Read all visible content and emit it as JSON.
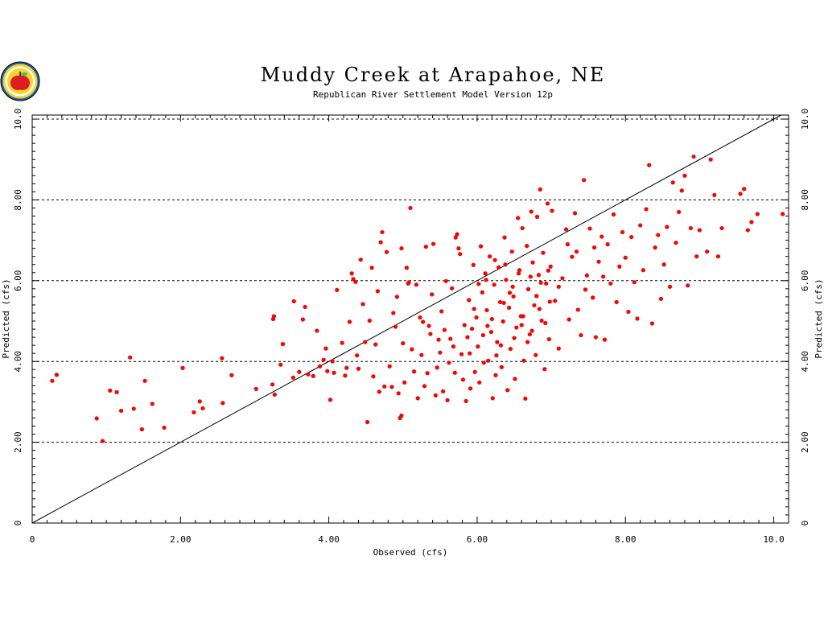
{
  "colors": {
    "points": "#ff0000",
    "grid": "#000000",
    "diagonal": "#000000",
    "background": "#ffffff"
  },
  "logo": {
    "icon": "apple-seal-logo"
  },
  "chart_data": {
    "type": "scatter",
    "title": "Muddy Creek at Arapahoe, NE",
    "subtitle": "Republican River Settlement Model Version 12p",
    "xlabel": "Observed (cfs)",
    "ylabel": "Predicted (cfs)",
    "y2label": "Predicted (cfs)",
    "xlim": [
      0,
      10.2
    ],
    "ylim": [
      0,
      10.1
    ],
    "x_ticks": [
      0,
      2,
      4,
      6,
      8,
      10
    ],
    "x_tick_labels": [
      "0",
      "2.00",
      "4.00",
      "6.00",
      "8.00",
      "10.0"
    ],
    "y_ticks": [
      0,
      2,
      4,
      6,
      8,
      10
    ],
    "y_tick_labels": [
      "0",
      "2.00",
      "4.00",
      "6.00",
      "8.00",
      "10.0"
    ],
    "grid": "horizontal dashed",
    "reference_line": "1:1",
    "series": [
      {
        "points": [
          [
            0.27,
            3.52
          ],
          [
            0.33,
            3.67
          ],
          [
            0.87,
            2.59
          ],
          [
            0.95,
            2.03
          ],
          [
            1.05,
            3.28
          ],
          [
            1.14,
            3.24
          ],
          [
            1.2,
            2.78
          ],
          [
            1.32,
            4.1
          ],
          [
            1.37,
            2.83
          ],
          [
            1.48,
            2.32
          ],
          [
            1.52,
            3.52
          ],
          [
            1.62,
            2.95
          ],
          [
            1.78,
            2.36
          ],
          [
            2.03,
            3.84
          ],
          [
            2.18,
            2.74
          ],
          [
            2.26,
            3.01
          ],
          [
            2.3,
            2.84
          ],
          [
            2.56,
            4.08
          ],
          [
            2.57,
            2.97
          ],
          [
            2.69,
            3.66
          ],
          [
            3.02,
            3.32
          ],
          [
            3.24,
            3.43
          ],
          [
            3.25,
            5.05
          ],
          [
            3.26,
            5.12
          ],
          [
            3.27,
            3.18
          ],
          [
            3.35,
            3.92
          ],
          [
            3.38,
            4.43
          ],
          [
            3.52,
            3.6
          ],
          [
            3.53,
            5.49
          ],
          [
            3.6,
            3.74
          ],
          [
            3.65,
            5.04
          ],
          [
            3.68,
            5.35
          ],
          [
            3.72,
            3.68
          ],
          [
            3.79,
            3.64
          ],
          [
            3.84,
            4.76
          ],
          [
            3.88,
            3.88
          ],
          [
            3.93,
            4.04
          ],
          [
            3.96,
            4.32
          ],
          [
            3.98,
            3.76
          ],
          [
            4.02,
            3.05
          ],
          [
            4.05,
            4.0
          ],
          [
            4.07,
            3.72
          ],
          [
            4.11,
            5.77
          ],
          [
            4.18,
            4.46
          ],
          [
            4.22,
            3.65
          ],
          [
            4.24,
            3.84
          ],
          [
            4.28,
            4.98
          ],
          [
            4.31,
            6.18
          ],
          [
            4.33,
            6.04
          ],
          [
            4.36,
            5.97
          ],
          [
            4.38,
            4.15
          ],
          [
            4.4,
            3.82
          ],
          [
            4.43,
            6.52
          ],
          [
            4.46,
            5.42
          ],
          [
            4.49,
            4.48
          ],
          [
            4.52,
            2.5
          ],
          [
            4.55,
            5.01
          ],
          [
            4.58,
            6.32
          ],
          [
            4.6,
            3.63
          ],
          [
            4.63,
            4.42
          ],
          [
            4.66,
            5.74
          ],
          [
            4.68,
            3.25
          ],
          [
            4.7,
            6.95
          ],
          [
            4.72,
            7.2
          ],
          [
            4.75,
            3.38
          ],
          [
            4.78,
            6.71
          ],
          [
            4.82,
            3.88
          ],
          [
            4.85,
            3.37
          ],
          [
            4.87,
            5.2
          ],
          [
            4.9,
            4.86
          ],
          [
            4.92,
            5.6
          ],
          [
            4.94,
            3.21
          ],
          [
            4.96,
            2.6
          ],
          [
            4.98,
            2.66
          ],
          [
            4.98,
            6.8
          ],
          [
            5.0,
            4.45
          ],
          [
            5.02,
            3.48
          ],
          [
            5.05,
            6.32
          ],
          [
            5.07,
            5.93
          ],
          [
            5.08,
            5.96
          ],
          [
            5.1,
            7.8
          ],
          [
            5.12,
            4.3
          ],
          [
            5.15,
            3.75
          ],
          [
            5.18,
            5.9
          ],
          [
            5.2,
            3.09
          ],
          [
            5.23,
            5.09
          ],
          [
            5.25,
            4.16
          ],
          [
            5.27,
            4.98
          ],
          [
            5.29,
            3.39
          ],
          [
            5.31,
            6.84
          ],
          [
            5.33,
            3.71
          ],
          [
            5.35,
            4.88
          ],
          [
            5.37,
            4.68
          ],
          [
            5.39,
            5.66
          ],
          [
            5.41,
            6.91
          ],
          [
            5.44,
            3.16
          ],
          [
            5.46,
            3.85
          ],
          [
            5.48,
            4.54
          ],
          [
            5.5,
            4.22
          ],
          [
            5.52,
            5.24
          ],
          [
            5.54,
            3.26
          ],
          [
            5.56,
            4.78
          ],
          [
            5.58,
            5.99
          ],
          [
            5.6,
            3.04
          ],
          [
            5.62,
            3.97
          ],
          [
            5.64,
            4.56
          ],
          [
            5.66,
            5.81
          ],
          [
            5.68,
            4.37
          ],
          [
            5.7,
            3.72
          ],
          [
            5.71,
            7.07
          ],
          [
            5.73,
            7.15
          ],
          [
            5.75,
            6.8
          ],
          [
            5.77,
            6.66
          ],
          [
            5.79,
            4.18
          ],
          [
            5.81,
            3.55
          ],
          [
            5.83,
            4.9
          ],
          [
            5.85,
            3.02
          ],
          [
            5.87,
            4.6
          ],
          [
            5.89,
            5.52
          ],
          [
            5.91,
            3.33
          ],
          [
            5.93,
            4.81
          ],
          [
            5.95,
            6.39
          ],
          [
            5.97,
            3.74
          ],
          [
            5.99,
            5.09
          ],
          [
            6.01,
            4.37
          ],
          [
            6.03,
            3.48
          ],
          [
            6.05,
            6.85
          ],
          [
            6.07,
            5.71
          ],
          [
            6.09,
            3.97
          ],
          [
            6.11,
            6.18
          ],
          [
            6.13,
            5.27
          ],
          [
            6.15,
            4.02
          ],
          [
            6.17,
            6.6
          ],
          [
            6.19,
            4.73
          ],
          [
            6.21,
            3.09
          ],
          [
            6.23,
            5.9
          ],
          [
            6.25,
            3.66
          ],
          [
            6.27,
            4.48
          ],
          [
            6.29,
            6.33
          ],
          [
            6.31,
            5.47
          ],
          [
            6.33,
            3.86
          ],
          [
            6.35,
            4.99
          ],
          [
            6.37,
            7.07
          ],
          [
            6.39,
            6.02
          ],
          [
            6.41,
            3.29
          ],
          [
            6.43,
            5.33
          ],
          [
            6.45,
            4.31
          ],
          [
            6.47,
            6.72
          ],
          [
            6.49,
            5.61
          ],
          [
            6.51,
            3.57
          ],
          [
            6.53,
            4.84
          ],
          [
            6.55,
            7.55
          ],
          [
            6.57,
            6.26
          ],
          [
            6.59,
            5.12
          ],
          [
            6.61,
            7.3
          ],
          [
            6.63,
            4.02
          ],
          [
            6.65,
            3.08
          ],
          [
            6.67,
            6.86
          ],
          [
            6.69,
            5.79
          ],
          [
            6.71,
            4.67
          ],
          [
            6.73,
            7.71
          ],
          [
            6.75,
            6.45
          ],
          [
            6.77,
            5.39
          ],
          [
            6.79,
            4.16
          ],
          [
            6.81,
            7.58
          ],
          [
            6.83,
            6.14
          ],
          [
            6.85,
            8.26
          ],
          [
            6.87,
            5.01
          ],
          [
            6.89,
            6.69
          ],
          [
            6.91,
            3.81
          ],
          [
            6.93,
            5.93
          ],
          [
            6.95,
            7.91
          ],
          [
            6.97,
            4.55
          ],
          [
            6.99,
            6.35
          ],
          [
            7.01,
            7.73
          ],
          [
            7.05,
            5.5
          ],
          [
            7.1,
            4.32
          ],
          [
            7.15,
            6.06
          ],
          [
            7.2,
            7.27
          ],
          [
            7.24,
            5.04
          ],
          [
            7.28,
            6.59
          ],
          [
            7.32,
            7.67
          ],
          [
            7.36,
            5.28
          ],
          [
            7.4,
            4.65
          ],
          [
            7.44,
            8.49
          ],
          [
            7.48,
            6.13
          ],
          [
            7.52,
            7.29
          ],
          [
            7.56,
            5.58
          ],
          [
            7.6,
            4.6
          ],
          [
            7.64,
            6.47
          ],
          [
            7.68,
            7.09
          ],
          [
            7.72,
            4.54
          ],
          [
            7.76,
            6.9
          ],
          [
            7.8,
            5.93
          ],
          [
            7.84,
            7.64
          ],
          [
            7.88,
            5.47
          ],
          [
            7.92,
            6.35
          ],
          [
            7.96,
            7.2
          ],
          [
            8.0,
            6.57
          ],
          [
            8.04,
            5.23
          ],
          [
            8.08,
            7.08
          ],
          [
            8.12,
            5.96
          ],
          [
            8.16,
            5.06
          ],
          [
            8.2,
            7.37
          ],
          [
            8.24,
            6.26
          ],
          [
            8.28,
            7.77
          ],
          [
            8.32,
            8.86
          ],
          [
            8.36,
            4.94
          ],
          [
            8.4,
            6.82
          ],
          [
            8.44,
            7.13
          ],
          [
            8.48,
            5.55
          ],
          [
            8.52,
            6.4
          ],
          [
            8.56,
            7.33
          ],
          [
            8.6,
            5.85
          ],
          [
            8.64,
            8.43
          ],
          [
            8.68,
            6.94
          ],
          [
            8.72,
            7.7
          ],
          [
            8.76,
            8.23
          ],
          [
            8.8,
            8.6
          ],
          [
            8.84,
            5.88
          ],
          [
            8.88,
            7.3
          ],
          [
            8.92,
            9.07
          ],
          [
            8.96,
            6.6
          ],
          [
            9.0,
            7.25
          ],
          [
            9.1,
            6.72
          ],
          [
            9.15,
            9.0
          ],
          [
            9.2,
            8.12
          ],
          [
            9.25,
            6.6
          ],
          [
            9.3,
            7.3
          ],
          [
            9.55,
            8.15
          ],
          [
            9.6,
            8.27
          ],
          [
            9.65,
            7.25
          ],
          [
            9.7,
            7.45
          ],
          [
            9.78,
            7.65
          ],
          [
            10.12,
            7.65
          ],
          [
            6.12,
            6.02
          ],
          [
            6.24,
            6.51
          ],
          [
            6.36,
            5.45
          ],
          [
            6.48,
            5.85
          ],
          [
            6.6,
            4.9
          ],
          [
            6.72,
            6.1
          ],
          [
            6.84,
            5.3
          ],
          [
            6.96,
            6.25
          ],
          [
            6.08,
            4.65
          ],
          [
            6.2,
            5.05
          ],
          [
            6.32,
            4.4
          ],
          [
            6.44,
            5.7
          ],
          [
            6.56,
            6.18
          ],
          [
            6.68,
            4.48
          ],
          [
            6.8,
            5.62
          ],
          [
            6.92,
            4.95
          ],
          [
            5.9,
            4.2
          ],
          [
            5.96,
            5.3
          ],
          [
            6.02,
            5.92
          ],
          [
            6.14,
            4.88
          ],
          [
            6.26,
            4.15
          ],
          [
            6.38,
            6.4
          ],
          [
            6.5,
            4.58
          ],
          [
            6.62,
            5.12
          ],
          [
            6.74,
            4.76
          ],
          [
            6.86,
            5.95
          ],
          [
            6.98,
            5.48
          ],
          [
            7.1,
            5.85
          ],
          [
            7.22,
            6.9
          ],
          [
            7.34,
            6.72
          ],
          [
            7.46,
            5.78
          ],
          [
            7.58,
            6.82
          ],
          [
            7.7,
            6.1
          ]
        ]
      }
    ]
  }
}
